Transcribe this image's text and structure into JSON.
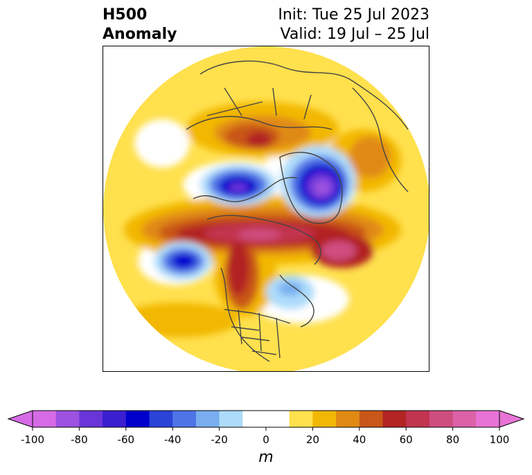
{
  "title": {
    "left_line1": "H500",
    "left_line2": "Anomaly",
    "right_line1": "Init: Tue 25 Jul 2023",
    "right_line2": "Valid: 19 Jul – 25 Jul"
  },
  "colorbar": {
    "label": "m",
    "ticks": [
      "-100",
      "-80",
      "-60",
      "-40",
      "-20",
      "0",
      "20",
      "40",
      "60",
      "80",
      "100"
    ],
    "levels": [
      -100,
      -90,
      -80,
      -70,
      -60,
      -50,
      -40,
      -30,
      -20,
      -10,
      10,
      20,
      30,
      40,
      50,
      60,
      70,
      80,
      90,
      100
    ],
    "colors": [
      "#d66be6",
      "#9d52e0",
      "#6a35d8",
      "#3a1fd1",
      "#0000cd",
      "#2a44d8",
      "#4f74e6",
      "#78aef0",
      "#addcfa",
      "#ffffff",
      "#ffe04d",
      "#f2b705",
      "#e08a14",
      "#c95719",
      "#b22424",
      "#c23550",
      "#cf4e80",
      "#dc62a8",
      "#e873d6"
    ],
    "under_color": "#d66be6",
    "over_color": "#e873d6"
  },
  "map": {
    "projection": "north-polar-stereographic",
    "field": "500 hPa geopotential height anomaly"
  }
}
